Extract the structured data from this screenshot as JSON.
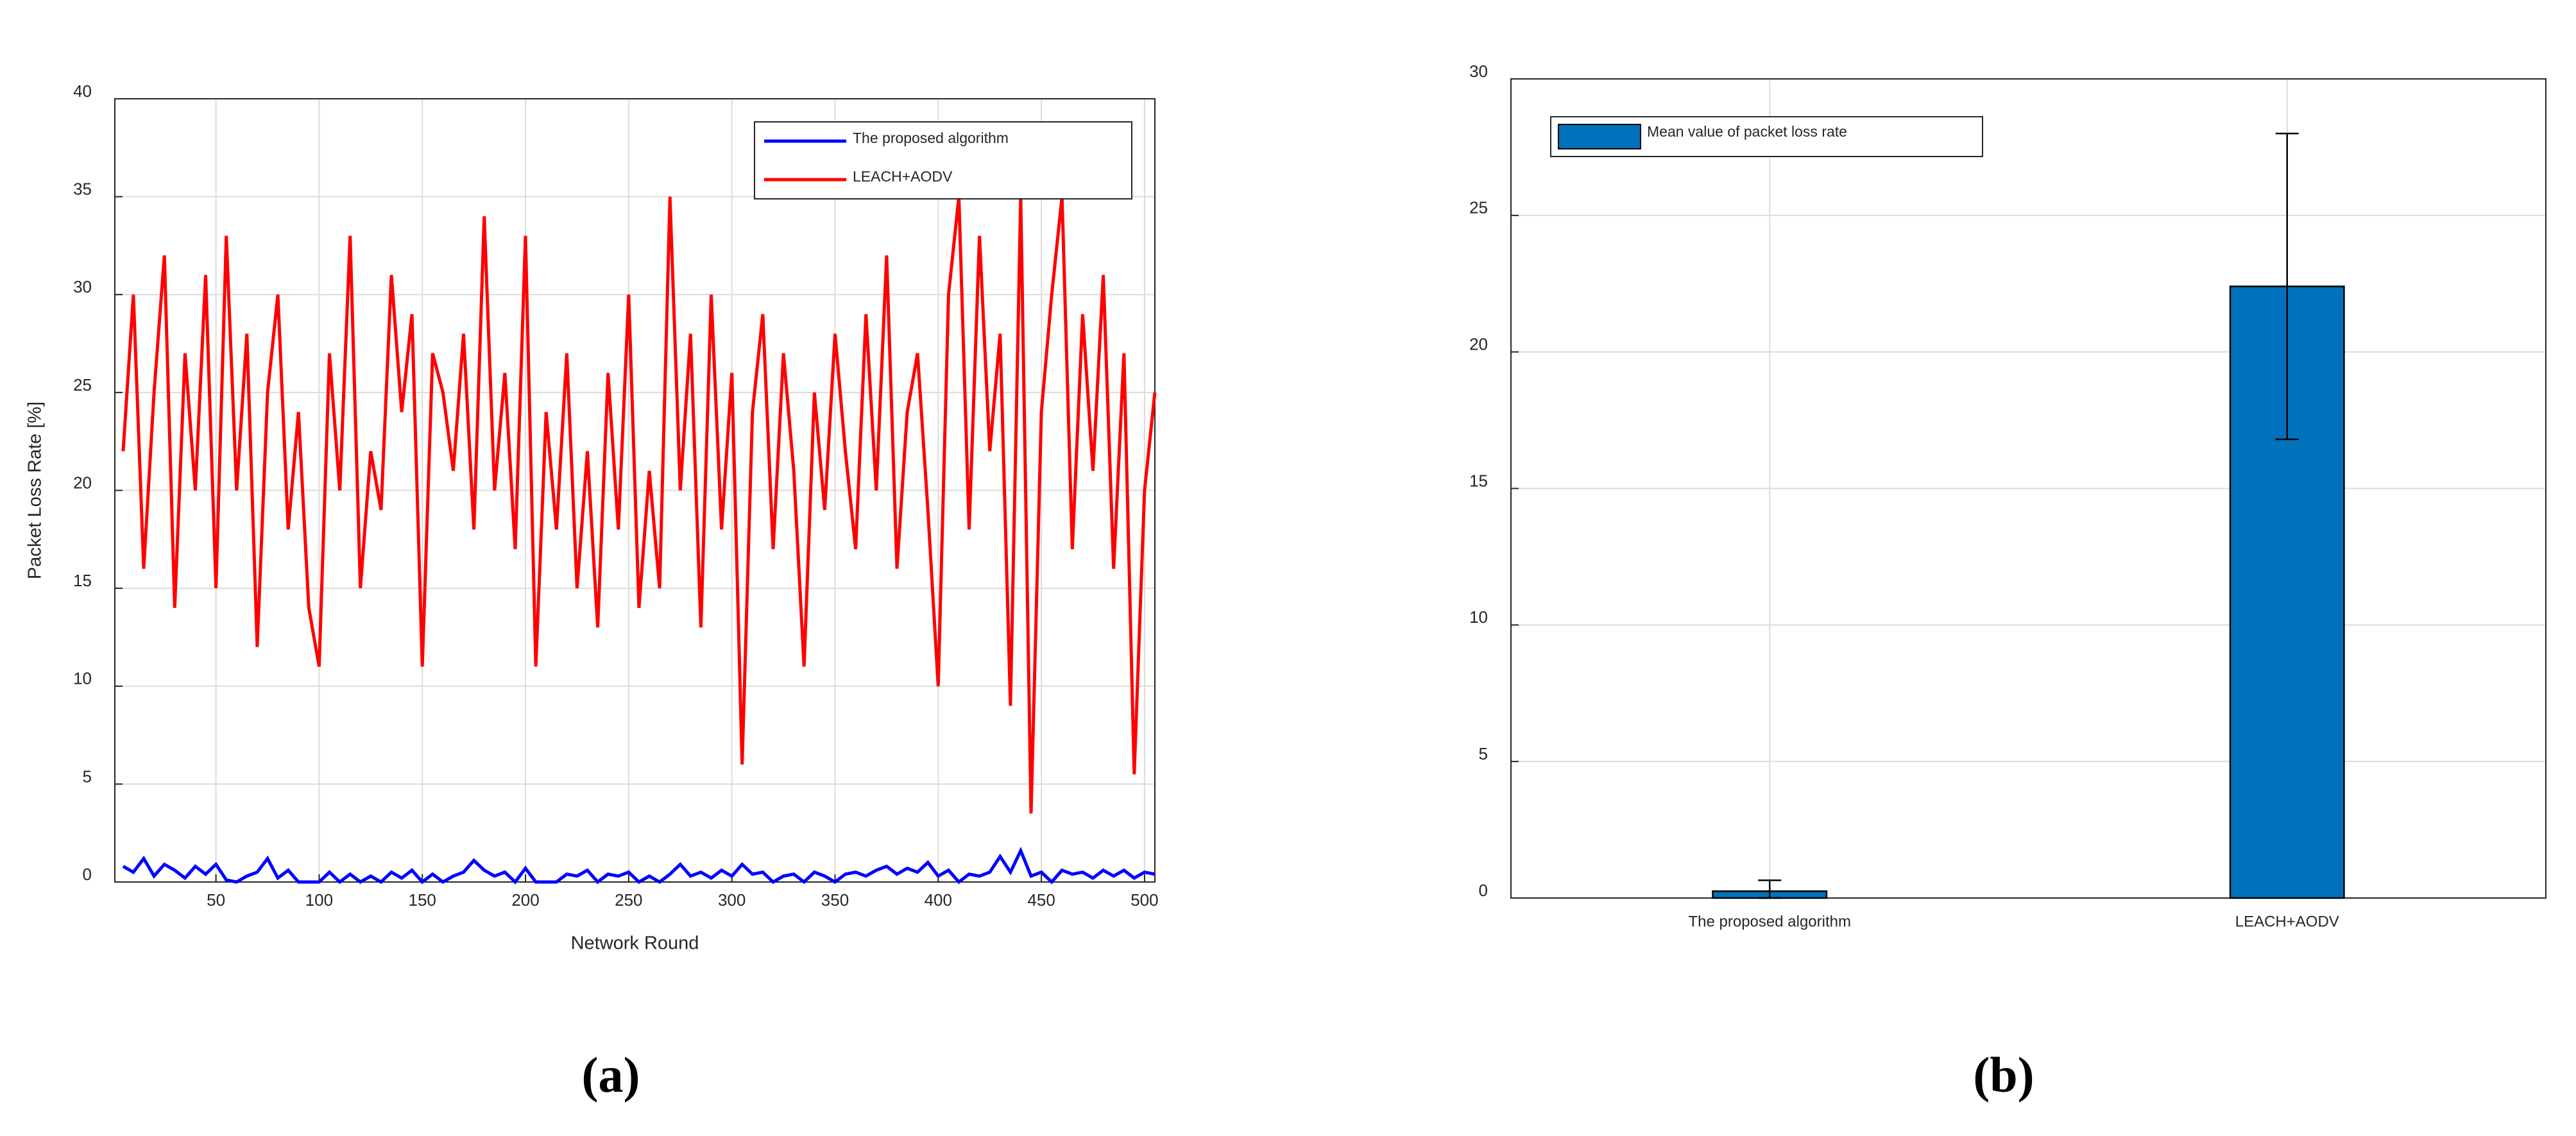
{
  "chart_data": [
    {
      "type": "line",
      "caption": "(a)",
      "xlabel": "Network Round",
      "ylabel": "Packet Loss Rate [%]",
      "x": [
        5,
        10,
        15,
        20,
        25,
        30,
        35,
        40,
        45,
        50,
        55,
        60,
        65,
        70,
        75,
        80,
        85,
        90,
        95,
        100,
        105,
        110,
        115,
        120,
        125,
        130,
        135,
        140,
        145,
        150,
        155,
        160,
        165,
        170,
        175,
        180,
        185,
        190,
        195,
        200,
        205,
        210,
        215,
        220,
        225,
        230,
        235,
        240,
        245,
        250,
        255,
        260,
        265,
        270,
        275,
        280,
        285,
        290,
        295,
        300,
        305,
        310,
        315,
        320,
        325,
        330,
        335,
        340,
        345,
        350,
        355,
        360,
        365,
        370,
        375,
        380,
        385,
        390,
        395,
        400,
        405,
        410,
        415,
        420,
        425,
        430,
        435,
        440,
        445,
        450,
        455,
        460,
        465,
        470,
        475,
        480,
        485,
        490,
        495,
        500,
        505
      ],
      "series": [
        {
          "name": "The proposed algorithm",
          "color": "#0000ff",
          "values": [
            0.8,
            0.5,
            1.2,
            0.3,
            0.9,
            0.6,
            0.2,
            0.8,
            0.4,
            0.9,
            0.1,
            0,
            0.3,
            0.5,
            1.2,
            0.2,
            0.6,
            0,
            0,
            0,
            0.5,
            0,
            0.4,
            0,
            0.3,
            0,
            0.5,
            0.2,
            0.6,
            0,
            0.4,
            0,
            0.3,
            0.5,
            1.1,
            0.6,
            0.3,
            0.5,
            0,
            0.7,
            0,
            0,
            0,
            0.4,
            0.3,
            0.6,
            0,
            0.4,
            0.3,
            0.5,
            0,
            0.3,
            0,
            0.4,
            0.9,
            0.3,
            0.5,
            0.2,
            0.6,
            0.3,
            0.9,
            0.4,
            0.5,
            0,
            0.3,
            0.4,
            0,
            0.5,
            0.3,
            0,
            0.4,
            0.5,
            0.3,
            0.6,
            0.8,
            0.4,
            0.7,
            0.5,
            1,
            0.3,
            0.6,
            0,
            0.4,
            0.3,
            0.5,
            1.3,
            0.5,
            1.6,
            0.3,
            0.5,
            0,
            0.6,
            0.4,
            0.5,
            0.2,
            0.6,
            0.3,
            0.6,
            0.2,
            0.5,
            0.4
          ]
        },
        {
          "name": "LEACH+AODV",
          "color": "#ff0000",
          "values": [
            22,
            30,
            16,
            25,
            32,
            14,
            27,
            20,
            31,
            15,
            33,
            20,
            28,
            12,
            25,
            30,
            18,
            24,
            14,
            11,
            27,
            20,
            33,
            15,
            22,
            19,
            31,
            24,
            29,
            11,
            27,
            25,
            21,
            28,
            18,
            34,
            20,
            26,
            17,
            33,
            11,
            24,
            18,
            27,
            15,
            22,
            13,
            26,
            18,
            30,
            14,
            21,
            15,
            35,
            20,
            28,
            13,
            30,
            18,
            26,
            6,
            24,
            29,
            17,
            27,
            21,
            11,
            25,
            19,
            28,
            22,
            17,
            29,
            20,
            32,
            16,
            24,
            27,
            19,
            10,
            30,
            35,
            18,
            33,
            22,
            28,
            9,
            35,
            3.5,
            24,
            30,
            35,
            17,
            29,
            21,
            31,
            16,
            27,
            5.5,
            20,
            25
          ]
        }
      ],
      "xlim": [
        1,
        505
      ],
      "ylim": [
        0,
        40
      ],
      "xticks": [
        50,
        100,
        150,
        200,
        250,
        300,
        350,
        400,
        450,
        500
      ],
      "yticks": [
        0,
        5,
        10,
        15,
        20,
        25,
        30,
        35,
        40
      ],
      "grid": true,
      "legend": "upper right"
    },
    {
      "type": "bar",
      "caption": "(b)",
      "categories": [
        "The proposed algorithm",
        "LEACH+AODV"
      ],
      "series": [
        {
          "name": "Mean value of packet loss rate",
          "color": "#0072bd",
          "values": [
            0.25,
            22.4
          ],
          "errors": [
            0.4,
            5.6
          ]
        }
      ],
      "ylim": [
        0,
        30
      ],
      "yticks": [
        0,
        5,
        10,
        15,
        20,
        25,
        30
      ],
      "grid": true,
      "legend": "upper left"
    }
  ]
}
